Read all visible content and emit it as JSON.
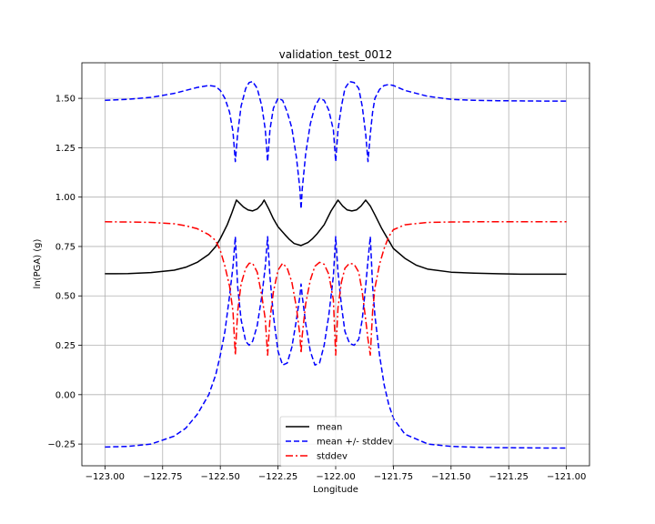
{
  "chart_data": {
    "type": "line",
    "title": "validation_test_0012",
    "xlabel": "Longitude",
    "ylabel": "ln(PGA) (g)",
    "xlim": [
      -123.1,
      -120.9
    ],
    "ylim": [
      -0.36,
      1.68
    ],
    "xticks": [
      -123.0,
      -122.75,
      -122.5,
      -122.25,
      -122.0,
      -121.75,
      -121.5,
      -121.25,
      -121.0
    ],
    "xtick_labels": [
      "−123.00",
      "−122.75",
      "−122.50",
      "−122.25",
      "−122.00",
      "−121.75",
      "−121.50",
      "−121.25",
      "−121.00"
    ],
    "yticks": [
      -0.25,
      0.0,
      0.25,
      0.5,
      0.75,
      1.0,
      1.25,
      1.5
    ],
    "ytick_labels": [
      "−0.25",
      "0.00",
      "0.25",
      "0.50",
      "0.75",
      "1.00",
      "1.25",
      "1.50"
    ],
    "grid": true,
    "legend_position": "bottom-center",
    "series": [
      {
        "name": "mean",
        "color": "#000000",
        "dash": "solid",
        "x": [
          -123.0,
          -122.9,
          -122.8,
          -122.7,
          -122.65,
          -122.6,
          -122.55,
          -122.52,
          -122.5,
          -122.47,
          -122.45,
          -122.43,
          -122.4,
          -122.38,
          -122.36,
          -122.34,
          -122.32,
          -122.31,
          -122.29,
          -122.27,
          -122.25,
          -122.22,
          -122.2,
          -122.18,
          -122.15,
          -122.12,
          -122.1,
          -122.08,
          -122.05,
          -122.02,
          -121.99,
          -121.97,
          -121.95,
          -121.93,
          -121.91,
          -121.89,
          -121.87,
          -121.85,
          -121.83,
          -121.8,
          -121.77,
          -121.75,
          -121.7,
          -121.65,
          -121.6,
          -121.5,
          -121.4,
          -121.3,
          -121.2,
          -121.1,
          -121.0
        ],
        "y": [
          0.612,
          0.613,
          0.618,
          0.63,
          0.645,
          0.67,
          0.71,
          0.75,
          0.79,
          0.86,
          0.92,
          0.985,
          0.95,
          0.935,
          0.93,
          0.94,
          0.965,
          0.985,
          0.94,
          0.89,
          0.85,
          0.81,
          0.785,
          0.765,
          0.755,
          0.77,
          0.79,
          0.815,
          0.86,
          0.93,
          0.985,
          0.955,
          0.935,
          0.93,
          0.935,
          0.955,
          0.985,
          0.955,
          0.91,
          0.84,
          0.78,
          0.74,
          0.69,
          0.655,
          0.635,
          0.62,
          0.615,
          0.612,
          0.61,
          0.61,
          0.61
        ]
      },
      {
        "name": "mean +/- stddev",
        "color": "#0000ff",
        "dash": "dashed",
        "x": [
          -123.0,
          -122.9,
          -122.8,
          -122.7,
          -122.65,
          -122.6,
          -122.55,
          -122.52,
          -122.5,
          -122.48,
          -122.46,
          -122.445,
          -122.435,
          -122.425,
          -122.41,
          -122.39,
          -122.375,
          -122.36,
          -122.34,
          -122.32,
          -122.305,
          -122.295,
          -122.285,
          -122.27,
          -122.25,
          -122.23,
          -122.21,
          -122.19,
          -122.17,
          -122.155,
          -122.15,
          -122.145,
          -122.13,
          -122.11,
          -122.09,
          -122.07,
          -122.05,
          -122.03,
          -122.01,
          -122.0,
          -121.99,
          -121.975,
          -121.96,
          -121.94,
          -121.92,
          -121.9,
          -121.885,
          -121.87,
          -121.86,
          -121.85,
          -121.84,
          -121.83,
          -121.81,
          -121.79,
          -121.77,
          -121.75,
          -121.7,
          -121.6,
          -121.5,
          -121.4,
          -121.3,
          -121.2,
          -121.1,
          -121.0
        ],
        "y": [
          1.49,
          1.495,
          1.505,
          1.525,
          1.54,
          1.555,
          1.565,
          1.56,
          1.54,
          1.5,
          1.43,
          1.33,
          1.18,
          1.32,
          1.46,
          1.55,
          1.58,
          1.585,
          1.55,
          1.46,
          1.34,
          1.18,
          1.34,
          1.45,
          1.5,
          1.49,
          1.43,
          1.35,
          1.2,
          1.04,
          0.94,
          1.04,
          1.22,
          1.37,
          1.46,
          1.5,
          1.49,
          1.44,
          1.34,
          1.18,
          1.34,
          1.46,
          1.55,
          1.585,
          1.58,
          1.55,
          1.46,
          1.32,
          1.18,
          1.32,
          1.43,
          1.5,
          1.545,
          1.565,
          1.57,
          1.565,
          1.54,
          1.51,
          1.495,
          1.49,
          1.488,
          1.487,
          1.486,
          1.486
        ]
      },
      {
        "name": "",
        "color": "#0000ff",
        "dash": "dashed",
        "x": [
          -123.0,
          -122.9,
          -122.8,
          -122.7,
          -122.65,
          -122.6,
          -122.55,
          -122.52,
          -122.5,
          -122.48,
          -122.46,
          -122.445,
          -122.435,
          -122.425,
          -122.41,
          -122.39,
          -122.375,
          -122.36,
          -122.34,
          -122.32,
          -122.305,
          -122.295,
          -122.285,
          -122.27,
          -122.25,
          -122.23,
          -122.21,
          -122.19,
          -122.17,
          -122.155,
          -122.15,
          -122.145,
          -122.13,
          -122.11,
          -122.09,
          -122.07,
          -122.05,
          -122.03,
          -122.01,
          -122.0,
          -121.99,
          -121.975,
          -121.96,
          -121.94,
          -121.92,
          -121.9,
          -121.885,
          -121.87,
          -121.86,
          -121.85,
          -121.84,
          -121.83,
          -121.81,
          -121.79,
          -121.77,
          -121.75,
          -121.7,
          -121.6,
          -121.5,
          -121.4,
          -121.3,
          -121.2,
          -121.1,
          -121.0
        ],
        "y": [
          -0.265,
          -0.262,
          -0.25,
          -0.21,
          -0.17,
          -0.1,
          0.0,
          0.1,
          0.2,
          0.32,
          0.5,
          0.65,
          0.8,
          0.55,
          0.38,
          0.27,
          0.25,
          0.27,
          0.35,
          0.5,
          0.65,
          0.8,
          0.6,
          0.4,
          0.22,
          0.15,
          0.16,
          0.24,
          0.38,
          0.5,
          0.56,
          0.5,
          0.36,
          0.22,
          0.15,
          0.16,
          0.25,
          0.4,
          0.6,
          0.8,
          0.62,
          0.45,
          0.32,
          0.26,
          0.25,
          0.28,
          0.38,
          0.55,
          0.68,
          0.8,
          0.55,
          0.4,
          0.2,
          0.05,
          -0.05,
          -0.12,
          -0.2,
          -0.25,
          -0.262,
          -0.266,
          -0.268,
          -0.269,
          -0.27,
          -0.27
        ]
      },
      {
        "name": "stddev",
        "color": "#ff0000",
        "dash": "dashdot",
        "x": [
          -123.0,
          -122.9,
          -122.8,
          -122.7,
          -122.65,
          -122.6,
          -122.55,
          -122.52,
          -122.5,
          -122.48,
          -122.46,
          -122.445,
          -122.435,
          -122.425,
          -122.41,
          -122.39,
          -122.375,
          -122.36,
          -122.34,
          -122.32,
          -122.305,
          -122.295,
          -122.285,
          -122.27,
          -122.25,
          -122.23,
          -122.21,
          -122.19,
          -122.17,
          -122.155,
          -122.15,
          -122.145,
          -122.13,
          -122.11,
          -122.09,
          -122.07,
          -122.05,
          -122.03,
          -122.01,
          -122.0,
          -121.99,
          -121.975,
          -121.96,
          -121.94,
          -121.92,
          -121.9,
          -121.885,
          -121.87,
          -121.86,
          -121.85,
          -121.84,
          -121.83,
          -121.81,
          -121.79,
          -121.77,
          -121.75,
          -121.7,
          -121.6,
          -121.5,
          -121.4,
          -121.3,
          -121.2,
          -121.1,
          -121.0
        ],
        "y": [
          0.875,
          0.874,
          0.872,
          0.865,
          0.855,
          0.84,
          0.81,
          0.78,
          0.73,
          0.65,
          0.55,
          0.42,
          0.2,
          0.42,
          0.56,
          0.64,
          0.665,
          0.665,
          0.62,
          0.5,
          0.38,
          0.2,
          0.38,
          0.52,
          0.63,
          0.665,
          0.64,
          0.57,
          0.44,
          0.3,
          0.21,
          0.3,
          0.46,
          0.58,
          0.65,
          0.67,
          0.66,
          0.61,
          0.48,
          0.2,
          0.44,
          0.57,
          0.64,
          0.665,
          0.66,
          0.62,
          0.52,
          0.38,
          0.28,
          0.2,
          0.42,
          0.54,
          0.66,
          0.74,
          0.8,
          0.835,
          0.86,
          0.872,
          0.874,
          0.875,
          0.875,
          0.875,
          0.875,
          0.875
        ]
      }
    ]
  }
}
